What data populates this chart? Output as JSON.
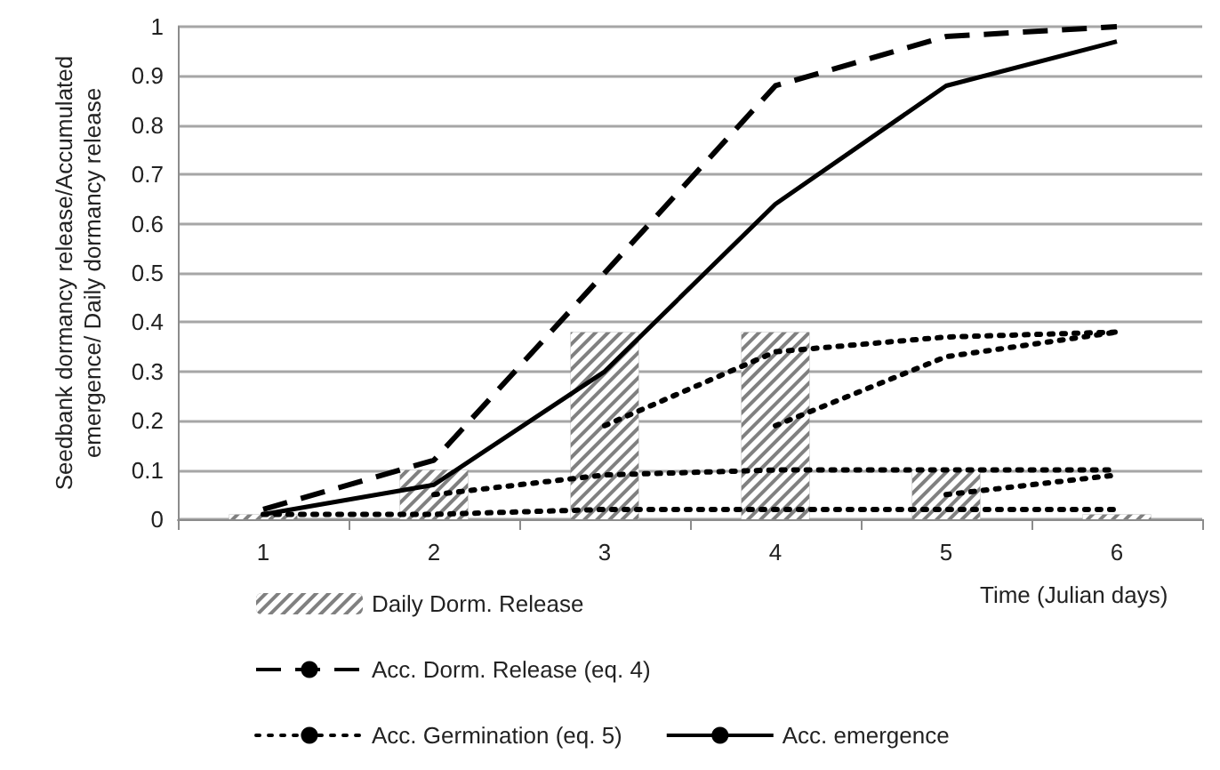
{
  "chart_data": {
    "type": "line",
    "xlabel": "Time (Julian days)",
    "ylabel": "Seedbank dormancy release/Accumulated emergence/ Daily dormancy release",
    "categories": [
      "1",
      "2",
      "3",
      "4",
      "5",
      "6"
    ],
    "ylim": [
      0,
      1
    ],
    "yticks": [
      0,
      0.1,
      0.2,
      0.3,
      0.4,
      0.5,
      0.6,
      0.7,
      0.8,
      0.9,
      1
    ],
    "grid": "y",
    "legend": "bottom",
    "marker": "none",
    "series": [
      {
        "name": "Daily Dorm. Release",
        "type": "bar",
        "color": "#808080",
        "values": [
          0.01,
          0.1,
          0.38,
          0.38,
          0.1,
          0.01
        ]
      },
      {
        "name": "Acc. Dorm. Release (eq. 4)",
        "color": "#000000",
        "line_style": "dashed",
        "values": [
          0.02,
          0.12,
          0.5,
          0.88,
          0.98,
          1.0
        ]
      },
      {
        "name": "Acc. Germination (eq. 5)",
        "color": "#000000",
        "line_style": "dotted",
        "values": [
          0.01,
          0.01,
          0.02,
          0.02,
          0.02,
          0.02
        ]
      },
      {
        "color": "#000000",
        "line_style": "dotted",
        "values": [
          null,
          0.05,
          0.09,
          0.1,
          0.1,
          0.1
        ]
      },
      {
        "color": "#000000",
        "line_style": "dotted",
        "values": [
          null,
          null,
          0.19,
          0.34,
          0.37,
          0.38
        ]
      },
      {
        "color": "#000000",
        "line_style": "dotted",
        "values": [
          null,
          null,
          null,
          0.19,
          0.33,
          0.38
        ]
      },
      {
        "color": "#000000",
        "line_style": "dotted",
        "values": [
          null,
          null,
          null,
          null,
          0.05,
          0.09
        ]
      },
      {
        "name": "Acc. emergence",
        "color": "#000000",
        "line_style": "solid",
        "values": [
          0.01,
          0.07,
          0.3,
          0.64,
          0.88,
          0.97
        ]
      }
    ]
  }
}
